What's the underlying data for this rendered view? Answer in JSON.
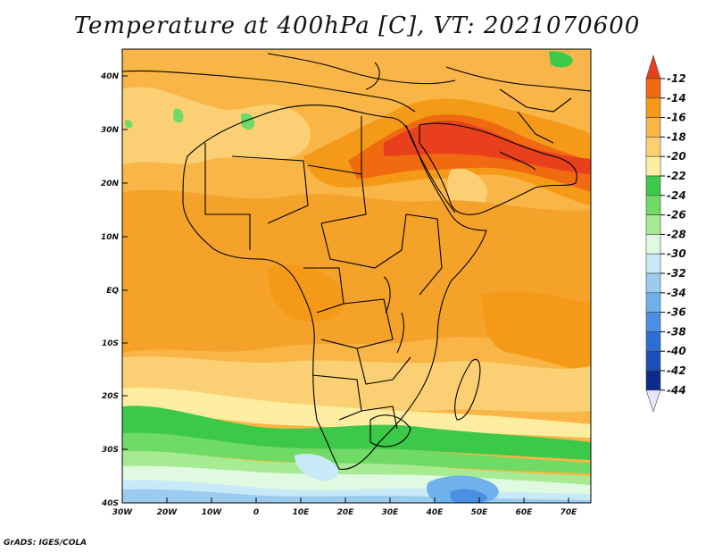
{
  "title": "Temperature at 400hPa [C], VT: 2021070600",
  "credit": "GrADS: IGES/COLA",
  "map": {
    "lon_labels": [
      "30W",
      "20W",
      "10W",
      "0",
      "10E",
      "20E",
      "30E",
      "40E",
      "50E",
      "60E",
      "70E"
    ],
    "lat_labels": [
      "40N",
      "30N",
      "20N",
      "10N",
      "EQ",
      "10S",
      "20S",
      "30S",
      "40S"
    ]
  },
  "colorbar": {
    "labels": [
      "-12",
      "-14",
      "-16",
      "-18",
      "-20",
      "-22",
      "-24",
      "-26",
      "-28",
      "-30",
      "-32",
      "-34",
      "-36",
      "-38",
      "-40",
      "-42",
      "-44"
    ],
    "colors": [
      "#e8401c",
      "#f06a10",
      "#f59a18",
      "#f8b64a",
      "#fbd074",
      "#fdeda0",
      "#3cc94a",
      "#6fda64",
      "#a6ea92",
      "#dffae0",
      "#c8e9f8",
      "#9ccbf0",
      "#6fb1ea",
      "#4a90e2",
      "#2c6fd4",
      "#1a4fb8",
      "#0d2a8c",
      "#0a1566"
    ]
  },
  "palette": {
    "land_border": "#000000"
  }
}
